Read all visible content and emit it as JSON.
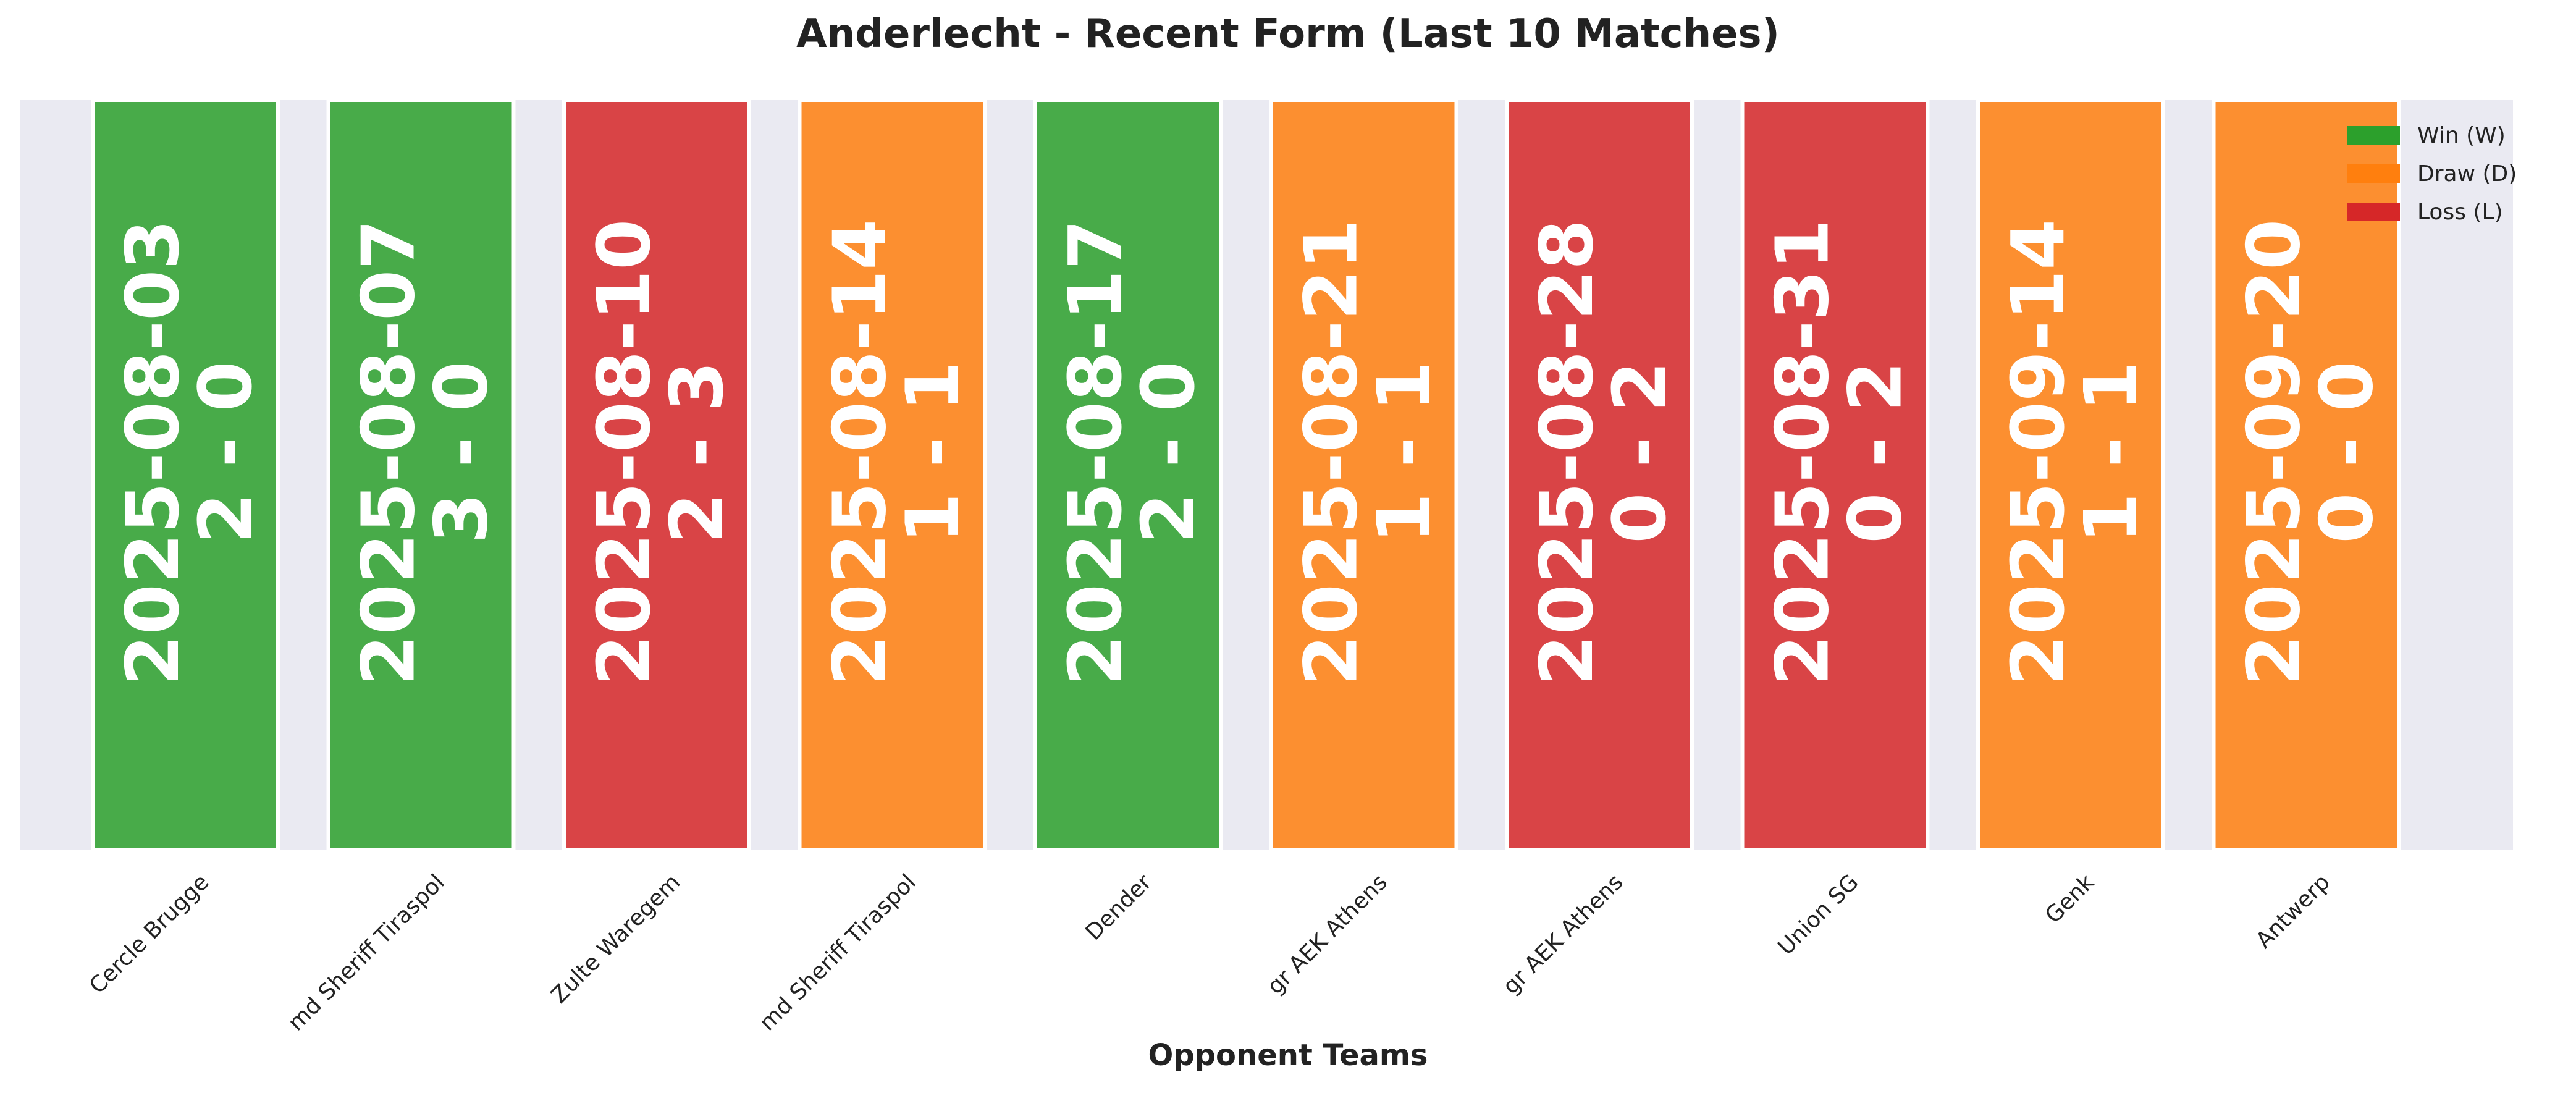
{
  "chart_data": {
    "type": "bar",
    "title": "Anderlecht - Recent Form (Last 10 Matches)",
    "xlabel": "Opponent Teams",
    "ylabel": "",
    "categories": [
      "Cercle Brugge",
      "md Sheriff Tiraspol",
      "Zulte Waregem",
      "md Sheriff Tiraspol",
      "Dender",
      "gr AEK Athens",
      "gr AEK Athens",
      "Union SG",
      "Genk",
      "Antwerp"
    ],
    "values": [
      1,
      1,
      1,
      1,
      1,
      1,
      1,
      1,
      1,
      1
    ],
    "dates": [
      "2025-08-03",
      "2025-08-07",
      "2025-08-10",
      "2025-08-14",
      "2025-08-17",
      "2025-08-21",
      "2025-08-28",
      "2025-08-31",
      "2025-09-14",
      "2025-09-20"
    ],
    "scores": [
      "2 - 0",
      "3 - 0",
      "2 - 3",
      "1 - 1",
      "2 - 0",
      "1 - 1",
      "0 - 2",
      "0 - 2",
      "1 - 1",
      "0 - 0"
    ],
    "results": [
      "W",
      "W",
      "L",
      "D",
      "W",
      "D",
      "L",
      "L",
      "D",
      "D"
    ],
    "grid": false,
    "legend_position": "top-right",
    "legend": [
      {
        "key": "W",
        "label": "Win (W)",
        "color": "#2ca02c"
      },
      {
        "key": "D",
        "label": "Draw (D)",
        "color": "#ff7f0e"
      },
      {
        "key": "L",
        "label": "Loss (L)",
        "color": "#d62728"
      }
    ]
  },
  "colors": {
    "plot_background": "#eaeaf2",
    "win": "#2ca02c",
    "draw": "#ff7f0e",
    "loss": "#d62728"
  }
}
